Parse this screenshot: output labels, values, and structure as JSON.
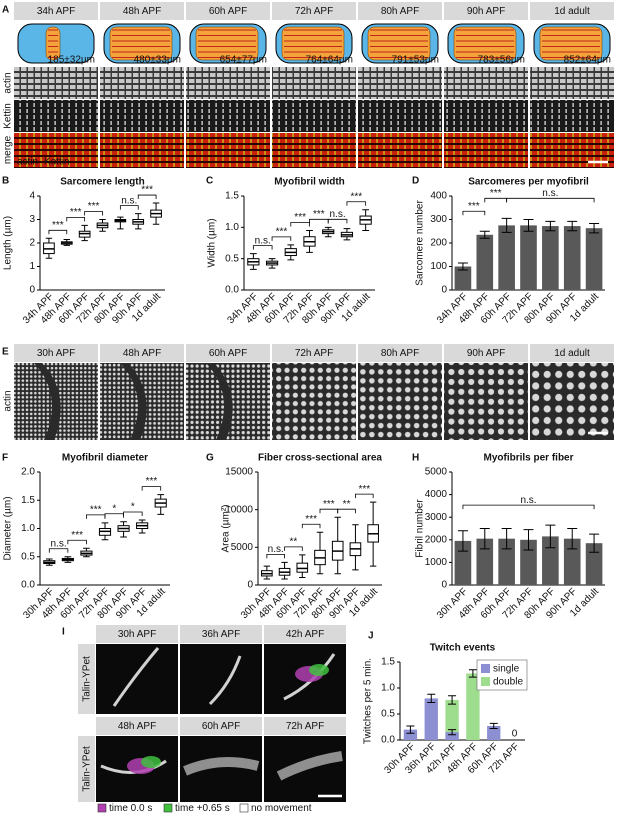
{
  "panel_letters": [
    "A",
    "B",
    "C",
    "D",
    "E",
    "F",
    "G",
    "H",
    "I",
    "J"
  ],
  "panel_A": {
    "headers": [
      "34h APF",
      "48h APF",
      "60h APF",
      "72h APF",
      "80h APF",
      "90h APF",
      "1d adult"
    ],
    "lengths": [
      "185±32µm",
      "480±33µm",
      "654±77µm",
      "764±64µm",
      "791±53µm",
      "783±56µm",
      "852±64µm"
    ],
    "row_labels": [
      "actin",
      "Kettin",
      "merge"
    ],
    "merge_legend": [
      "actin",
      "Kettin"
    ]
  },
  "panel_E": {
    "headers": [
      "30h APF",
      "48h APF",
      "60h APF",
      "72h APF",
      "80h APF",
      "90h APF",
      "1d adult"
    ],
    "row_label": "actin"
  },
  "panel_I": {
    "headers": [
      "30h APF",
      "36h APF",
      "42h APF",
      "48h APF",
      "60h APF",
      "72h APF"
    ],
    "row_labels": [
      "Talin-YPet",
      "Talin-YPet"
    ],
    "legend": [
      "time 0.0 s",
      "time +0.65 s",
      "no movement"
    ]
  },
  "chart_data": [
    {
      "type": "box",
      "title": "Sarcomere length",
      "y_label": "Length (µm)",
      "categories": [
        "34h APF",
        "48h APF",
        "60h APF",
        "72h APF",
        "80h APF",
        "90h APF",
        "1d adult"
      ],
      "boxes": [
        [
          1.35,
          1.55,
          1.75,
          2.0,
          2.2
        ],
        [
          1.9,
          1.95,
          2.0,
          2.05,
          2.15
        ],
        [
          2.1,
          2.25,
          2.4,
          2.5,
          2.75
        ],
        [
          2.5,
          2.65,
          2.75,
          2.85,
          3.0
        ],
        [
          2.6,
          2.9,
          2.95,
          3.0,
          3.1
        ],
        [
          2.6,
          2.8,
          2.9,
          3.0,
          3.25
        ],
        [
          2.8,
          3.1,
          3.25,
          3.4,
          3.7
        ]
      ],
      "color": "#ffffff",
      "ylim": [
        0,
        4
      ],
      "yticks": [
        0,
        1,
        2,
        3,
        4
      ],
      "annotations": [
        {
          "text": "***",
          "between": [
            "34h APF",
            "48h APF"
          ]
        },
        {
          "text": "***",
          "between": [
            "48h APF",
            "60h APF"
          ]
        },
        {
          "text": "***",
          "between": [
            "60h APF",
            "72h APF"
          ]
        },
        {
          "text": "n.s.",
          "between": [
            "80h APF",
            "90h APF"
          ]
        },
        {
          "text": "***",
          "between": [
            "90h APF",
            "1d adult"
          ]
        }
      ]
    },
    {
      "type": "box",
      "title": "Myofibril width",
      "y_label": "Width (µm)",
      "categories": [
        "34h APF",
        "48h APF",
        "60h APF",
        "72h APF",
        "80h APF",
        "90h APF",
        "1d adult"
      ],
      "boxes": [
        [
          0.33,
          0.4,
          0.45,
          0.5,
          0.58
        ],
        [
          0.35,
          0.4,
          0.43,
          0.46,
          0.5
        ],
        [
          0.48,
          0.55,
          0.6,
          0.66,
          0.72
        ],
        [
          0.6,
          0.7,
          0.77,
          0.85,
          0.95
        ],
        [
          0.85,
          0.9,
          0.93,
          0.96,
          1.0
        ],
        [
          0.8,
          0.85,
          0.88,
          0.92,
          0.98
        ],
        [
          0.95,
          1.05,
          1.12,
          1.18,
          1.28
        ]
      ],
      "color": "#ffffff",
      "ylim": [
        0,
        1.5
      ],
      "yticks": [
        {
          "value": 0,
          "label": "0.0"
        },
        0.5,
        {
          "value": 1,
          "label": "1.0"
        },
        1.5
      ],
      "annotations": [
        {
          "text": "n.s.",
          "between": [
            "34h APF",
            "48h APF"
          ]
        },
        {
          "text": "***",
          "between": [
            "48h APF",
            "60h APF"
          ]
        },
        {
          "text": "***",
          "between": [
            "60h APF",
            "72h APF"
          ]
        },
        {
          "text": "***",
          "between": [
            "72h APF",
            "80h APF"
          ]
        },
        {
          "text": "n.s.",
          "between": [
            "80h APF",
            "90h APF"
          ]
        },
        {
          "text": "***",
          "between": [
            "90h APF",
            "1d adult"
          ]
        }
      ]
    },
    {
      "type": "bar",
      "title": "Sarcomeres per myofibril",
      "y_label": "Sarcomere number",
      "categories": [
        "34h APF",
        "48h APF",
        "60h APF",
        "72h APF",
        "80h APF",
        "90h APF",
        "1d adult"
      ],
      "values": [
        100,
        235,
        275,
        275,
        272,
        272,
        263
      ],
      "errors": [
        15,
        15,
        30,
        25,
        20,
        20,
        20
      ],
      "color": "#595959",
      "ylim": [
        0,
        400
      ],
      "yticks": [
        0,
        100,
        200,
        300,
        400
      ],
      "annotations": [
        {
          "text": "***",
          "between": [
            "34h APF",
            "48h APF"
          ]
        },
        {
          "text": "***",
          "between": [
            "48h APF",
            "60h APF"
          ]
        },
        {
          "text": "n.s.",
          "between": [
            "60h APF",
            "1d adult"
          ]
        }
      ]
    },
    {
      "type": "box",
      "title": "Myofibril diameter",
      "y_label": "Diameter (µm)",
      "categories": [
        "30h APF",
        "48h APF",
        "60h APF",
        "72h APF",
        "80h APF",
        "90h APF",
        "1d adult"
      ],
      "boxes": [
        [
          0.35,
          0.38,
          0.4,
          0.43,
          0.46
        ],
        [
          0.4,
          0.43,
          0.45,
          0.47,
          0.5
        ],
        [
          0.5,
          0.53,
          0.56,
          0.6,
          0.65
        ],
        [
          0.8,
          0.88,
          0.95,
          1.0,
          1.1
        ],
        [
          0.85,
          0.95,
          1.0,
          1.05,
          1.12
        ],
        [
          0.92,
          1.0,
          1.05,
          1.1,
          1.15
        ],
        [
          1.25,
          1.38,
          1.45,
          1.52,
          1.6
        ]
      ],
      "color": "#ffffff",
      "ylim": [
        0,
        2
      ],
      "yticks": [
        {
          "value": 0,
          "label": "0.0"
        },
        0.5,
        {
          "value": 1,
          "label": "1.0"
        },
        1.5,
        {
          "value": 2,
          "label": "2.0"
        }
      ],
      "annotations": [
        {
          "text": "n.s.",
          "between": [
            "30h APF",
            "48h APF"
          ]
        },
        {
          "text": "***",
          "between": [
            "48h APF",
            "60h APF"
          ]
        },
        {
          "text": "***",
          "between": [
            "60h APF",
            "72h APF"
          ]
        },
        {
          "text": "*",
          "between": [
            "72h APF",
            "80h APF"
          ]
        },
        {
          "text": "*",
          "between": [
            "80h APF",
            "90h APF"
          ]
        },
        {
          "text": "***",
          "between": [
            "90h APF",
            "1d adult"
          ]
        }
      ]
    },
    {
      "type": "box",
      "title": "Fiber cross-sectional area",
      "y_label": "Area (µm²)",
      "categories": [
        "30h APF",
        "48h APF",
        "60h APF",
        "72h APF",
        "80h APF",
        "90h APF",
        "1d adult"
      ],
      "boxes": [
        [
          800,
          1200,
          1500,
          1900,
          2500
        ],
        [
          800,
          1300,
          1700,
          2200,
          3000
        ],
        [
          1000,
          1700,
          2200,
          2900,
          4000
        ],
        [
          1500,
          2700,
          3600,
          4600,
          7000
        ],
        [
          1500,
          3300,
          4500,
          5800,
          9000
        ],
        [
          2000,
          3900,
          4800,
          5600,
          8000
        ],
        [
          2500,
          5700,
          6800,
          8000,
          11000
        ]
      ],
      "color": "#ffffff",
      "ylim": [
        0,
        15000
      ],
      "yticks": [
        0,
        5000,
        10000,
        15000
      ],
      "annotations": [
        {
          "text": "n.s.",
          "between": [
            "30h APF",
            "48h APF"
          ]
        },
        {
          "text": "**",
          "between": [
            "48h APF",
            "60h APF"
          ]
        },
        {
          "text": "***",
          "between": [
            "60h APF",
            "72h APF"
          ]
        },
        {
          "text": "***",
          "between": [
            "72h APF",
            "80h APF"
          ]
        },
        {
          "text": "**",
          "between": [
            "80h APF",
            "90h APF"
          ]
        },
        {
          "text": "***",
          "between": [
            "90h APF",
            "1d adult"
          ]
        }
      ]
    },
    {
      "type": "bar",
      "title": "Myofibrils per fiber",
      "y_label": "Fibril number",
      "categories": [
        "30h APF",
        "48h APF",
        "60h APF",
        "72h APF",
        "80h APF",
        "90h APF",
        "1d adult"
      ],
      "values": [
        1950,
        2050,
        2050,
        2000,
        2150,
        2050,
        1850
      ],
      "errors": [
        450,
        450,
        450,
        450,
        500,
        450,
        400
      ],
      "color": "#595959",
      "ylim": [
        0,
        5000
      ],
      "yticks": [
        0,
        1000,
        2000,
        3000,
        4000,
        5000
      ],
      "annotations": [
        {
          "text": "n.s.",
          "between": [
            "30h APF",
            "1d adult"
          ]
        }
      ]
    },
    {
      "type": "bar",
      "title": "Twitch events",
      "y_label": "Twitches per 5 min.",
      "categories": [
        "30h APF",
        "36h APF",
        "42h APF",
        "48h APF",
        "60h APF",
        "72h APF"
      ],
      "series": [
        {
          "name": "double",
          "color": "#9edc8e",
          "values": [
            null,
            null,
            0.77,
            1.28,
            null,
            null
          ],
          "errors": [
            null,
            null,
            0.08,
            0.07,
            null,
            null
          ]
        },
        {
          "name": "single",
          "color": "#8c8fd1",
          "values": [
            0.2,
            0.8,
            0.15,
            null,
            0.27,
            0
          ],
          "errors": [
            0.07,
            0.08,
            0.05,
            null,
            0.05,
            null
          ]
        }
      ],
      "ylim": [
        0,
        1.5
      ],
      "yticks": [
        {
          "value": 0,
          "label": "0.0"
        },
        0.5,
        {
          "value": 1,
          "label": "1.0"
        },
        1.5
      ],
      "legend": "top-right"
    }
  ]
}
